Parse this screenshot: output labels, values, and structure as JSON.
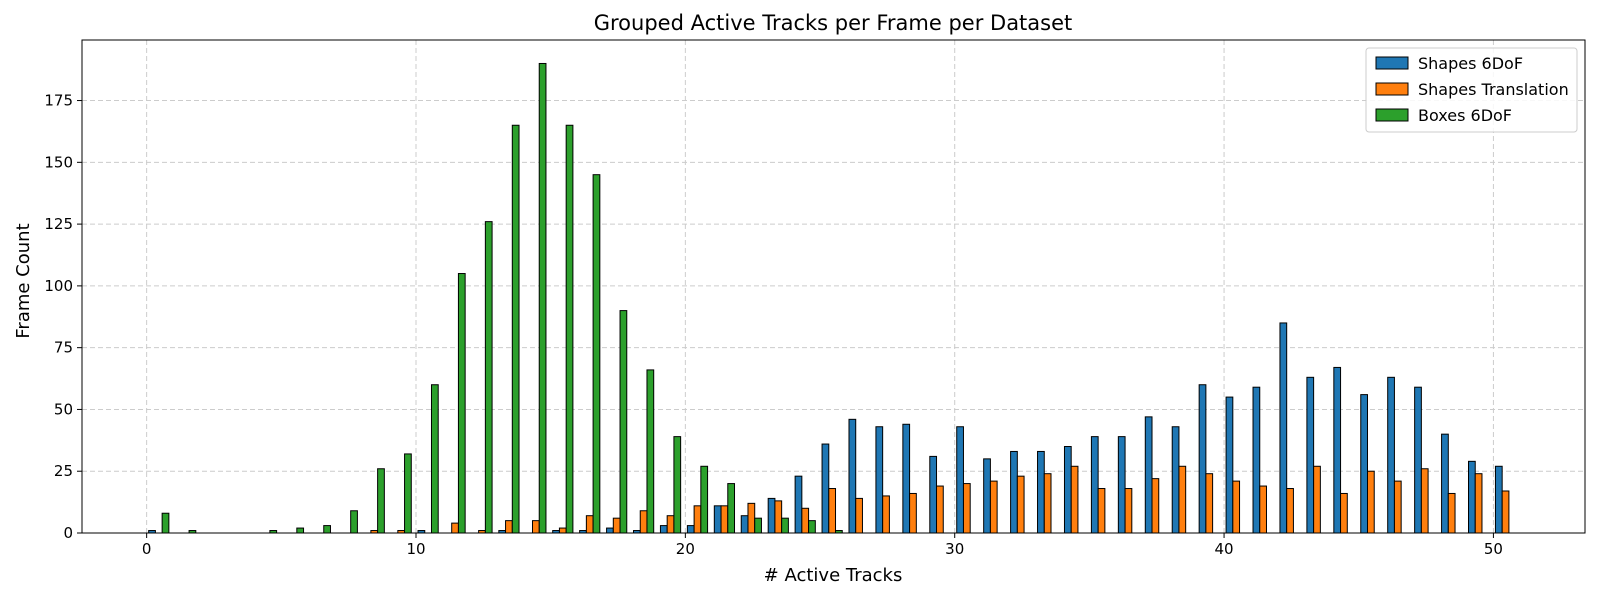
{
  "chart_data": {
    "type": "bar",
    "title": "Grouped Active Tracks per Frame per Dataset",
    "xlabel": "# Active Tracks",
    "ylabel": "Frame Count",
    "xlim": [
      -2.4,
      53.4
    ],
    "ylim": [
      0,
      199.5
    ],
    "xticks": [
      0,
      10,
      20,
      30,
      40,
      50
    ],
    "yticks": [
      0,
      25,
      50,
      75,
      100,
      125,
      150,
      175
    ],
    "grid": true,
    "legend_position": "top-right",
    "x": [
      0,
      1,
      2,
      3,
      4,
      5,
      6,
      7,
      8,
      9,
      10,
      11,
      12,
      13,
      14,
      15,
      16,
      17,
      18,
      19,
      20,
      21,
      22,
      23,
      24,
      25,
      26,
      27,
      28,
      29,
      30,
      31,
      32,
      33,
      34,
      35,
      36,
      37,
      38,
      39,
      40,
      41,
      42,
      43,
      44,
      45,
      46,
      47,
      48,
      49,
      50
    ],
    "series": [
      {
        "name": "Shapes 6DoF",
        "color": "#1f77b4",
        "values": [
          1,
          0,
          0,
          0,
          0,
          0,
          0,
          0,
          0,
          0,
          1,
          0,
          0,
          1,
          0,
          1,
          1,
          2,
          1,
          3,
          3,
          11,
          7,
          14,
          23,
          36,
          46,
          43,
          44,
          31,
          43,
          30,
          33,
          33,
          35,
          39,
          39,
          47,
          43,
          60,
          55,
          59,
          85,
          63,
          67,
          56,
          63,
          59,
          40,
          29,
          27
        ]
      },
      {
        "name": "Shapes Translation",
        "color": "#ff7f0e",
        "values": [
          0,
          0,
          0,
          0,
          0,
          0,
          0,
          0,
          1,
          1,
          0,
          4,
          1,
          5,
          5,
          2,
          7,
          6,
          9,
          7,
          11,
          11,
          12,
          13,
          10,
          18,
          14,
          15,
          16,
          19,
          20,
          21,
          23,
          24,
          27,
          18,
          18,
          22,
          27,
          24,
          21,
          19,
          18,
          27,
          16,
          25,
          21,
          26,
          16,
          24,
          17
        ]
      },
      {
        "name": "Boxes 6DoF",
        "color": "#2ca02c",
        "values": [
          8,
          1,
          0,
          0,
          1,
          2,
          3,
          9,
          26,
          32,
          60,
          105,
          126,
          165,
          190,
          165,
          145,
          90,
          66,
          39,
          27,
          20,
          6,
          6,
          5,
          1,
          0,
          0,
          0,
          0,
          0,
          0,
          0,
          0,
          0,
          0,
          0,
          0,
          0,
          0,
          0,
          0,
          0,
          0,
          0,
          0,
          0,
          0,
          0,
          0,
          0
        ]
      }
    ]
  }
}
